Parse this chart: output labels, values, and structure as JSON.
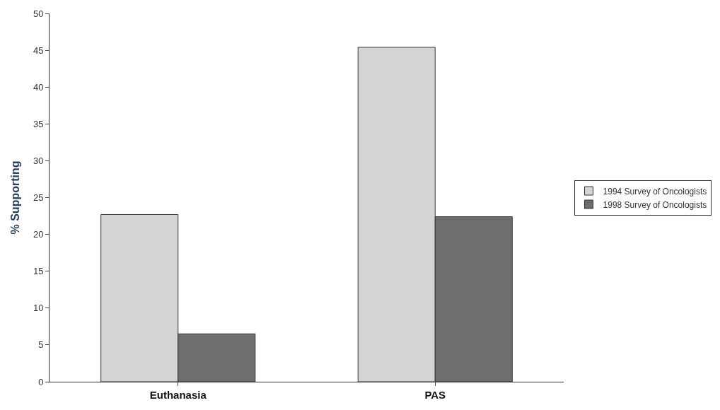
{
  "chart_data": {
    "type": "bar",
    "ylabel": "% Supporting",
    "categories": [
      "Euthanasia",
      "PAS"
    ],
    "series": [
      {
        "name": "1994 Survey of Oncologists",
        "color": "#d4d4d4",
        "values": [
          22.7,
          45.4
        ]
      },
      {
        "name": "1998 Survey of Oncologists",
        "color": "#6e6e6e",
        "values": [
          6.5,
          22.4
        ]
      }
    ],
    "ylim": [
      0,
      50
    ],
    "yticks": [
      0,
      5,
      10,
      15,
      20,
      25,
      30,
      35,
      40,
      45,
      50
    ],
    "grid": false,
    "legend": "right"
  }
}
